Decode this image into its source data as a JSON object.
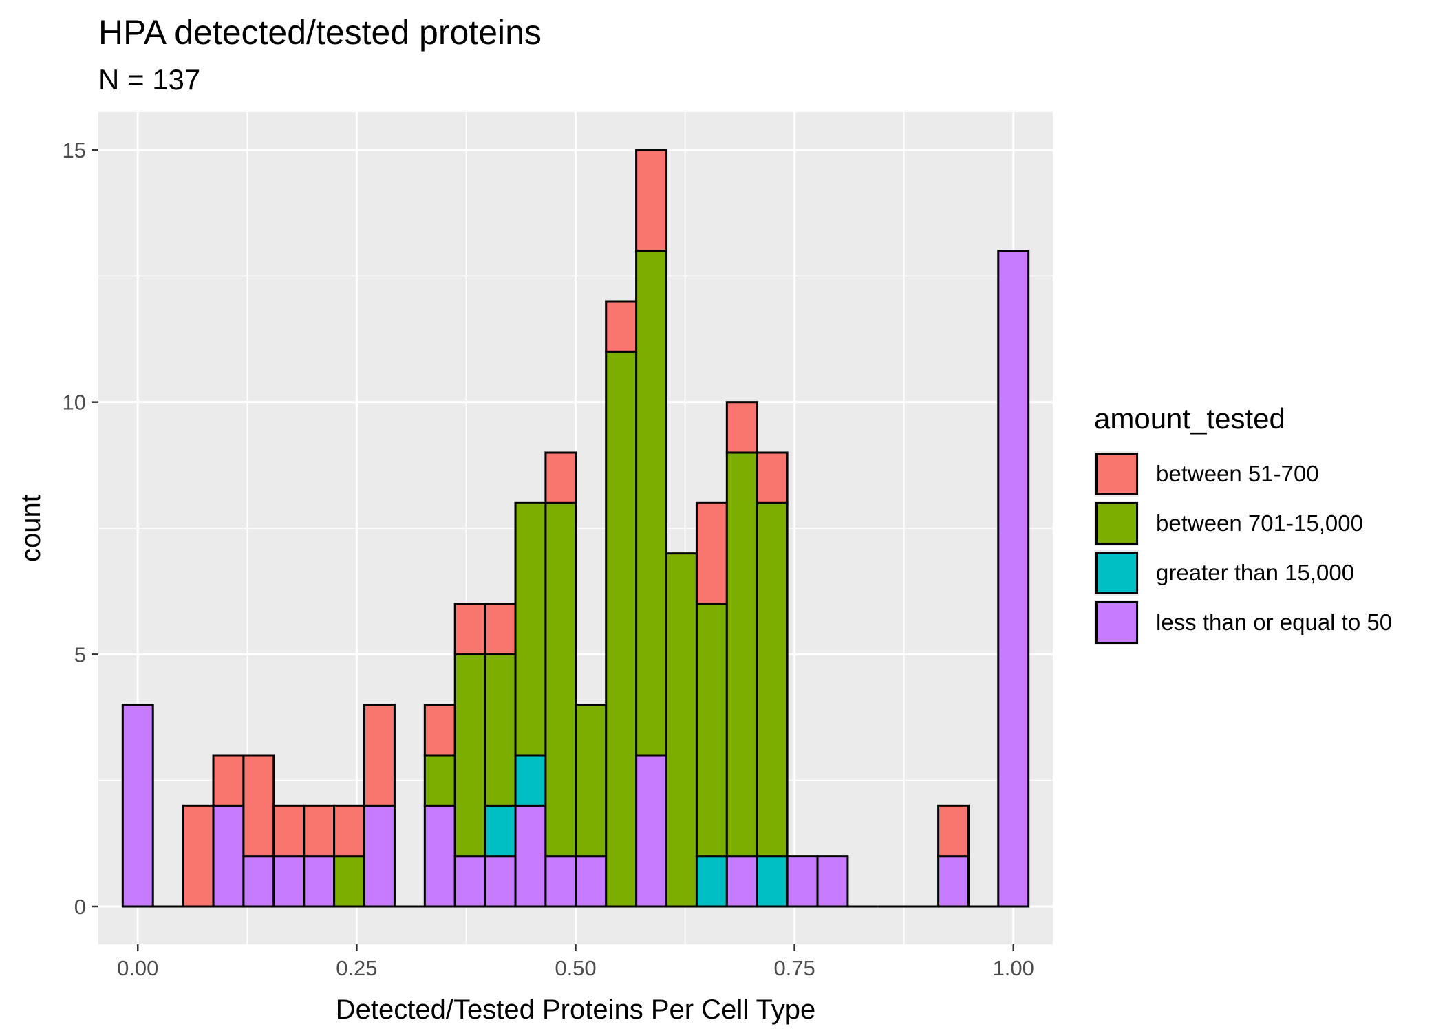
{
  "chart_data": {
    "type": "bar",
    "stacked": true,
    "title": "HPA detected/tested proteins",
    "subtitle": "N =  137",
    "xlabel": "Detected/Tested Proteins Per Cell Type",
    "ylabel": "count",
    "xlim": [
      -0.045,
      1.045
    ],
    "ylim": [
      -0.75,
      15.75
    ],
    "bin_width": 0.0345,
    "x_ticks": [
      0,
      0.25,
      0.5,
      0.75,
      1
    ],
    "x_tick_labels": [
      "0.00",
      "0.25",
      "0.50",
      "0.75",
      "1.00"
    ],
    "y_ticks": [
      0,
      5,
      10,
      15
    ],
    "y_tick_labels": [
      "0",
      "5",
      "10",
      "15"
    ],
    "x": [
      0.0,
      0.0345,
      0.069,
      0.1035,
      0.138,
      0.1725,
      0.207,
      0.2415,
      0.276,
      0.3105,
      0.345,
      0.3795,
      0.414,
      0.4485,
      0.483,
      0.5175,
      0.552,
      0.5865,
      0.621,
      0.6555,
      0.69,
      0.7245,
      0.759,
      0.7935,
      0.828,
      0.8625,
      0.897,
      0.9315,
      0.966,
      1.0
    ],
    "legend_title": "amount_tested",
    "legend_position": "right",
    "grid": true,
    "panel_background": "#ebebeb",
    "series": [
      {
        "name": "less than or equal to 50",
        "color": "#C77CFF",
        "values": [
          4,
          0,
          0,
          2,
          1,
          1,
          1,
          0,
          2,
          0,
          2,
          1,
          1,
          2,
          1,
          1,
          0,
          3,
          0,
          0,
          1,
          0,
          1,
          1,
          0,
          0,
          0,
          1,
          0,
          13
        ]
      },
      {
        "name": "greater than 15,000",
        "color": "#00BFC4",
        "values": [
          0,
          0,
          0,
          0,
          0,
          0,
          0,
          0,
          0,
          0,
          0,
          0,
          1,
          1,
          0,
          0,
          0,
          0,
          0,
          1,
          0,
          1,
          0,
          0,
          0,
          0,
          0,
          0,
          0,
          0
        ]
      },
      {
        "name": "between 701-15,000",
        "color": "#7CAE00",
        "values": [
          0,
          0,
          0,
          0,
          0,
          0,
          0,
          1,
          0,
          0,
          1,
          4,
          3,
          5,
          7,
          3,
          11,
          10,
          7,
          5,
          8,
          7,
          0,
          0,
          0,
          0,
          0,
          0,
          0,
          0
        ]
      },
      {
        "name": "between 51-700",
        "color": "#F8766D",
        "values": [
          0,
          0,
          2,
          1,
          2,
          1,
          1,
          1,
          2,
          0,
          1,
          1,
          1,
          0,
          1,
          0,
          1,
          2,
          0,
          2,
          1,
          1,
          0,
          0,
          0,
          0,
          0,
          1,
          0,
          0
        ]
      }
    ],
    "legend_order": [
      "between 51-700",
      "between 701-15,000",
      "greater than 15,000",
      "less than or equal to 50"
    ]
  }
}
